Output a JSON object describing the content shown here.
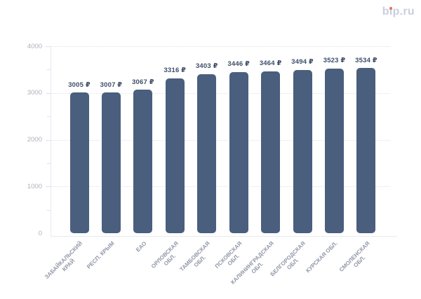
{
  "brand": {
    "name": "bip.ru",
    "text_color": "#c9cfe0",
    "accent_dot_color": "#ed7152"
  },
  "chart_data": {
    "type": "bar",
    "title": "",
    "xlabel": "",
    "ylabel": "",
    "categories": [
      [
        "ЗАБАЙКАЛЬСКИЙ",
        "КРАЙ"
      ],
      [
        "РЕСП. КРЫМ"
      ],
      [
        "ЕАО"
      ],
      [
        "ОРЛОВСКАЯ",
        "ОБЛ."
      ],
      [
        "ТАМБОВСКАЯ",
        "ОБЛ."
      ],
      [
        "ПСКОВСКАЯ",
        "ОБЛ."
      ],
      [
        "КАЛИНИНГРАДСКАЯ",
        "ОБЛ."
      ],
      [
        "БЕЛГОРОДСКАЯ",
        "ОБЛ."
      ],
      [
        "КУРСКАЯ ОБЛ."
      ],
      [
        "СМОЛЕНСКАЯ",
        "ОБЛ."
      ]
    ],
    "values": [
      3005,
      3007,
      3067,
      3316,
      3403,
      3446,
      3464,
      3494,
      3523,
      3534
    ],
    "value_suffix": "₽",
    "value_labels": [
      "3005 ₽",
      "3007 ₽",
      "3067 ₽",
      "3316 ₽",
      "3403 ₽",
      "3446 ₽",
      "3464 ₽",
      "3494 ₽",
      "3523 ₽",
      "3534 ₽"
    ],
    "yticks": [
      0,
      1000,
      2000,
      3000,
      4000
    ],
    "minor_tick_step": 500,
    "ylim": [
      0,
      4000
    ],
    "grid": "horizontal-dotted",
    "legend": "none",
    "colors": {
      "bar": "#4a5e7d",
      "value_label": "#3d4e68",
      "x_tick_label": "#8f97a7",
      "y_tick_label": "#abb1bd",
      "gridline": "#dde2ea",
      "axis": "#e7eaf0"
    }
  }
}
